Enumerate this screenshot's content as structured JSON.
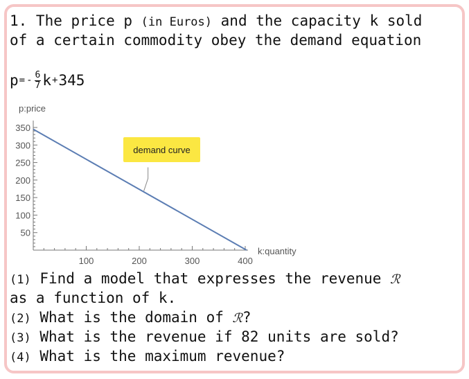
{
  "problem": {
    "line1": "1. The price p ",
    "line1_paren": "(in Euros)",
    "line1_tail": " and the capacity k sold",
    "line2": "of a certain commodity obey the demand equation",
    "formula": {
      "lhs": "p",
      "eq": "=",
      "minus": "-",
      "num": "6",
      "den": "7",
      "var": "k",
      "plus": "+",
      "const": "345"
    },
    "questions": [
      {
        "n": "(1)",
        "text": " Find a model that expresses the revenue ",
        "sym": "ℛ"
      },
      {
        "cont": "as a function of k."
      },
      {
        "n": "(2)",
        "text": " What is the domain of ",
        "sym": "ℛ",
        "tail": "?"
      },
      {
        "n": "(3)",
        "text": " What is the revenue if 82 units are sold?"
      },
      {
        "n": "(4)",
        "text": " What is the maximum revenue?"
      }
    ]
  },
  "chart_data": {
    "type": "line",
    "ylabel": "p:price",
    "xlabel": "k:quantity",
    "xlim": [
      0,
      402.5
    ],
    "ylim": [
      0,
      350
    ],
    "x_ticks": [
      100,
      200,
      300,
      400
    ],
    "y_ticks": [
      50,
      100,
      150,
      200,
      250,
      300,
      350
    ],
    "series": [
      {
        "x": [
          0,
          402.5
        ],
        "y": [
          345,
          0
        ]
      }
    ],
    "annotation": {
      "text": "demand curve",
      "at": {
        "x": 210,
        "y": 165
      }
    },
    "colors": {
      "line": "#5b7db3",
      "callout": "#fbe742",
      "axis": "#777777"
    }
  }
}
